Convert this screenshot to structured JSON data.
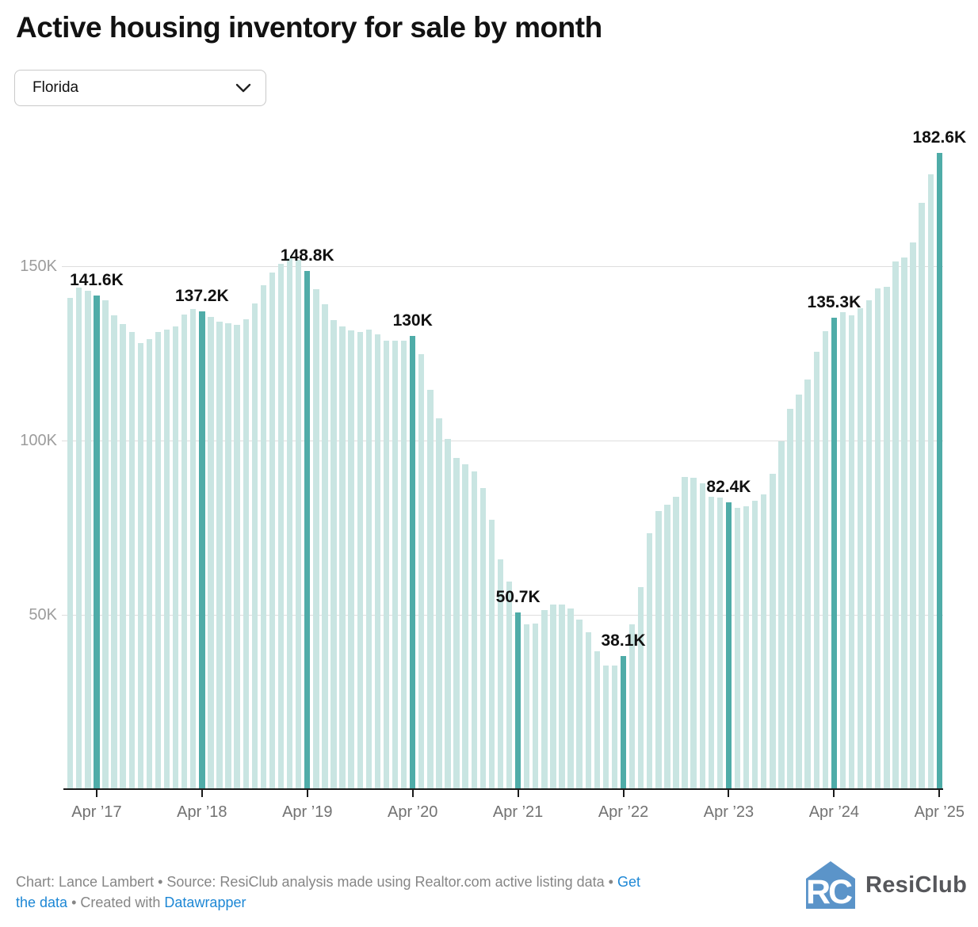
{
  "title": "Active housing inventory for sale by month",
  "dropdown": {
    "value": "Florida"
  },
  "chart_data": {
    "type": "bar",
    "title": "Active housing inventory for sale by month",
    "region_filter": "Florida",
    "x": [
      "Jan 2017",
      "Feb 2017",
      "Mar 2017",
      "Apr 2017",
      "May 2017",
      "Jun 2017",
      "Jul 2017",
      "Aug 2017",
      "Sep 2017",
      "Oct 2017",
      "Nov 2017",
      "Dec 2017",
      "Jan 2018",
      "Feb 2018",
      "Mar 2018",
      "Apr 2018",
      "May 2018",
      "Jun 2018",
      "Jul 2018",
      "Aug 2018",
      "Sep 2018",
      "Oct 2018",
      "Nov 2018",
      "Dec 2018",
      "Jan 2019",
      "Feb 2019",
      "Mar 2019",
      "Apr 2019",
      "May 2019",
      "Jun 2019",
      "Jul 2019",
      "Aug 2019",
      "Sep 2019",
      "Oct 2019",
      "Nov 2019",
      "Dec 2019",
      "Jan 2020",
      "Feb 2020",
      "Mar 2020",
      "Apr 2020",
      "May 2020",
      "Jun 2020",
      "Jul 2020",
      "Aug 2020",
      "Sep 2020",
      "Oct 2020",
      "Nov 2020",
      "Dec 2020",
      "Jan 2021",
      "Feb 2021",
      "Mar 2021",
      "Apr 2021",
      "May 2021",
      "Jun 2021",
      "Jul 2021",
      "Aug 2021",
      "Sep 2021",
      "Oct 2021",
      "Nov 2021",
      "Dec 2021",
      "Jan 2022",
      "Feb 2022",
      "Mar 2022",
      "Apr 2022",
      "May 2022",
      "Jun 2022",
      "Jul 2022",
      "Aug 2022",
      "Sep 2022",
      "Oct 2022",
      "Nov 2022",
      "Dec 2022",
      "Jan 2023",
      "Feb 2023",
      "Mar 2023",
      "Apr 2023",
      "May 2023",
      "Jun 2023",
      "Jul 2023",
      "Aug 2023",
      "Sep 2023",
      "Oct 2023",
      "Nov 2023",
      "Dec 2023",
      "Jan 2024",
      "Feb 2024",
      "Mar 2024",
      "Apr 2024",
      "May 2024",
      "Jun 2024",
      "Jul 2024",
      "Aug 2024",
      "Sep 2024",
      "Oct 2024",
      "Nov 2024",
      "Dec 2024",
      "Jan 2025",
      "Feb 2025",
      "Mar 2025",
      "Apr 2025"
    ],
    "values": [
      141100,
      143900,
      143000,
      141600,
      140400,
      135900,
      133600,
      131300,
      128000,
      129200,
      131300,
      131900,
      132900,
      136200,
      137900,
      137200,
      135600,
      134100,
      133800,
      133300,
      134800,
      139400,
      144700,
      148300,
      150800,
      152400,
      152000,
      148800,
      143600,
      139100,
      134700,
      132900,
      131800,
      131300,
      132000,
      130500,
      128800,
      128800,
      128700,
      130000,
      124800,
      114700,
      106400,
      100500,
      95100,
      93300,
      91200,
      86500,
      77400,
      66000,
      59700,
      50700,
      47200,
      47600,
      51400,
      53100,
      52900,
      51800,
      48700,
      45000,
      39600,
      35500,
      35500,
      38100,
      47200,
      58000,
      73500,
      79900,
      81600,
      84000,
      89500,
      89300,
      87900,
      83900,
      83700,
      82400,
      80800,
      81200,
      82700,
      84600,
      90500,
      99800,
      109100,
      113200,
      117700,
      125600,
      131400,
      135300,
      137000,
      136000,
      138000,
      140300,
      143800,
      144300,
      151500,
      152700,
      156900,
      168200,
      176500,
      182600
    ],
    "highlights": [
      {
        "index": 3,
        "label": "141.6K"
      },
      {
        "index": 15,
        "label": "137.2K"
      },
      {
        "index": 27,
        "label": "148.8K"
      },
      {
        "index": 39,
        "label": "130K"
      },
      {
        "index": 51,
        "label": "50.7K"
      },
      {
        "index": 63,
        "label": "38.1K"
      },
      {
        "index": 75,
        "label": "82.4K"
      },
      {
        "index": 87,
        "label": "135.3K"
      },
      {
        "index": 99,
        "label": "182.6K"
      }
    ],
    "xticks": [
      {
        "index": 3,
        "label": "Apr ’17"
      },
      {
        "index": 15,
        "label": "Apr ’18"
      },
      {
        "index": 27,
        "label": "Apr ’19"
      },
      {
        "index": 39,
        "label": "Apr ’20"
      },
      {
        "index": 51,
        "label": "Apr ’21"
      },
      {
        "index": 63,
        "label": "Apr ’22"
      },
      {
        "index": 75,
        "label": "Apr ’23"
      },
      {
        "index": 87,
        "label": "Apr ’24"
      },
      {
        "index": 99,
        "label": "Apr ’25"
      }
    ],
    "yticks": [
      {
        "value": 50000,
        "label": "50K"
      },
      {
        "value": 100000,
        "label": "100K"
      },
      {
        "value": 150000,
        "label": "150K"
      }
    ],
    "ylim": [
      0,
      189000
    ],
    "grid": "horizontal",
    "legend": "none",
    "colors": {
      "bar": "#c9e5e2",
      "highlight": "#4faca8",
      "gridline": "#dedede",
      "axis": "#1a1a1a"
    }
  },
  "footer": {
    "line1_text": "Chart: Lance Lambert • Source: ResiClub analysis made using Realtor.com active listing data • ",
    "line1_link": "Get",
    "line2_link1": "the data",
    "line2_mid": " • Created with ",
    "line2_link2": "Datawrapper"
  },
  "logo": {
    "text": "ResiClub"
  }
}
